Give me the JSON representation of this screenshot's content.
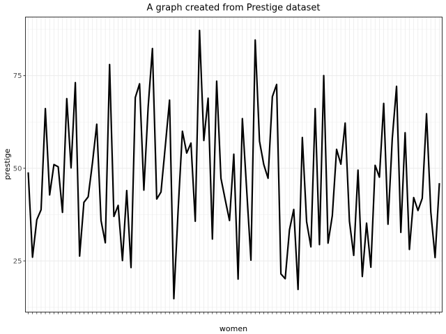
{
  "chart_data": {
    "type": "line",
    "title": "A graph created from Prestige dataset",
    "xlabel": "women",
    "ylabel": "prestige",
    "y_ticks": [
      25,
      50,
      75
    ],
    "ylim": [
      11.2,
      90.8
    ],
    "grid": true,
    "theme": "bw",
    "series_color": "#000000",
    "series": [
      {
        "values": [
          48.9,
          26.0,
          36.1,
          38.8,
          66.1,
          42.8,
          51.0,
          50.4,
          38.1,
          68.8,
          50.1,
          73.1,
          26.3,
          40.8,
          42.3,
          51.5,
          61.9,
          35.9,
          29.9,
          78.0,
          37.0,
          40.0,
          25.1,
          44.0,
          23.2,
          69.1,
          72.8,
          44.1,
          66.5,
          82.3,
          41.7,
          43.6,
          55.9,
          68.4,
          14.8,
          38.7,
          60.0,
          54.1,
          56.8,
          35.7,
          87.2,
          57.5,
          68.9,
          30.9,
          73.5,
          47.3,
          41.5,
          35.9,
          53.8,
          20.1,
          63.4,
          44.3,
          25.2,
          84.6,
          57.3,
          51.0,
          47.3,
          69.3,
          72.6,
          21.5,
          20.2,
          33.4,
          38.9,
          17.3,
          58.3,
          35.6,
          28.8,
          66.1,
          29.4,
          75.0,
          29.8,
          37.2,
          55.1,
          51.1,
          62.2,
          35.7,
          26.5,
          49.5,
          20.8,
          35.2,
          23.3,
          50.8,
          47.6,
          67.5,
          34.9,
          58.0,
          72.1,
          32.7,
          59.6,
          28.1,
          42.1,
          38.6,
          41.9,
          64.7,
          38.2,
          25.9,
          46.0
        ]
      }
    ]
  }
}
